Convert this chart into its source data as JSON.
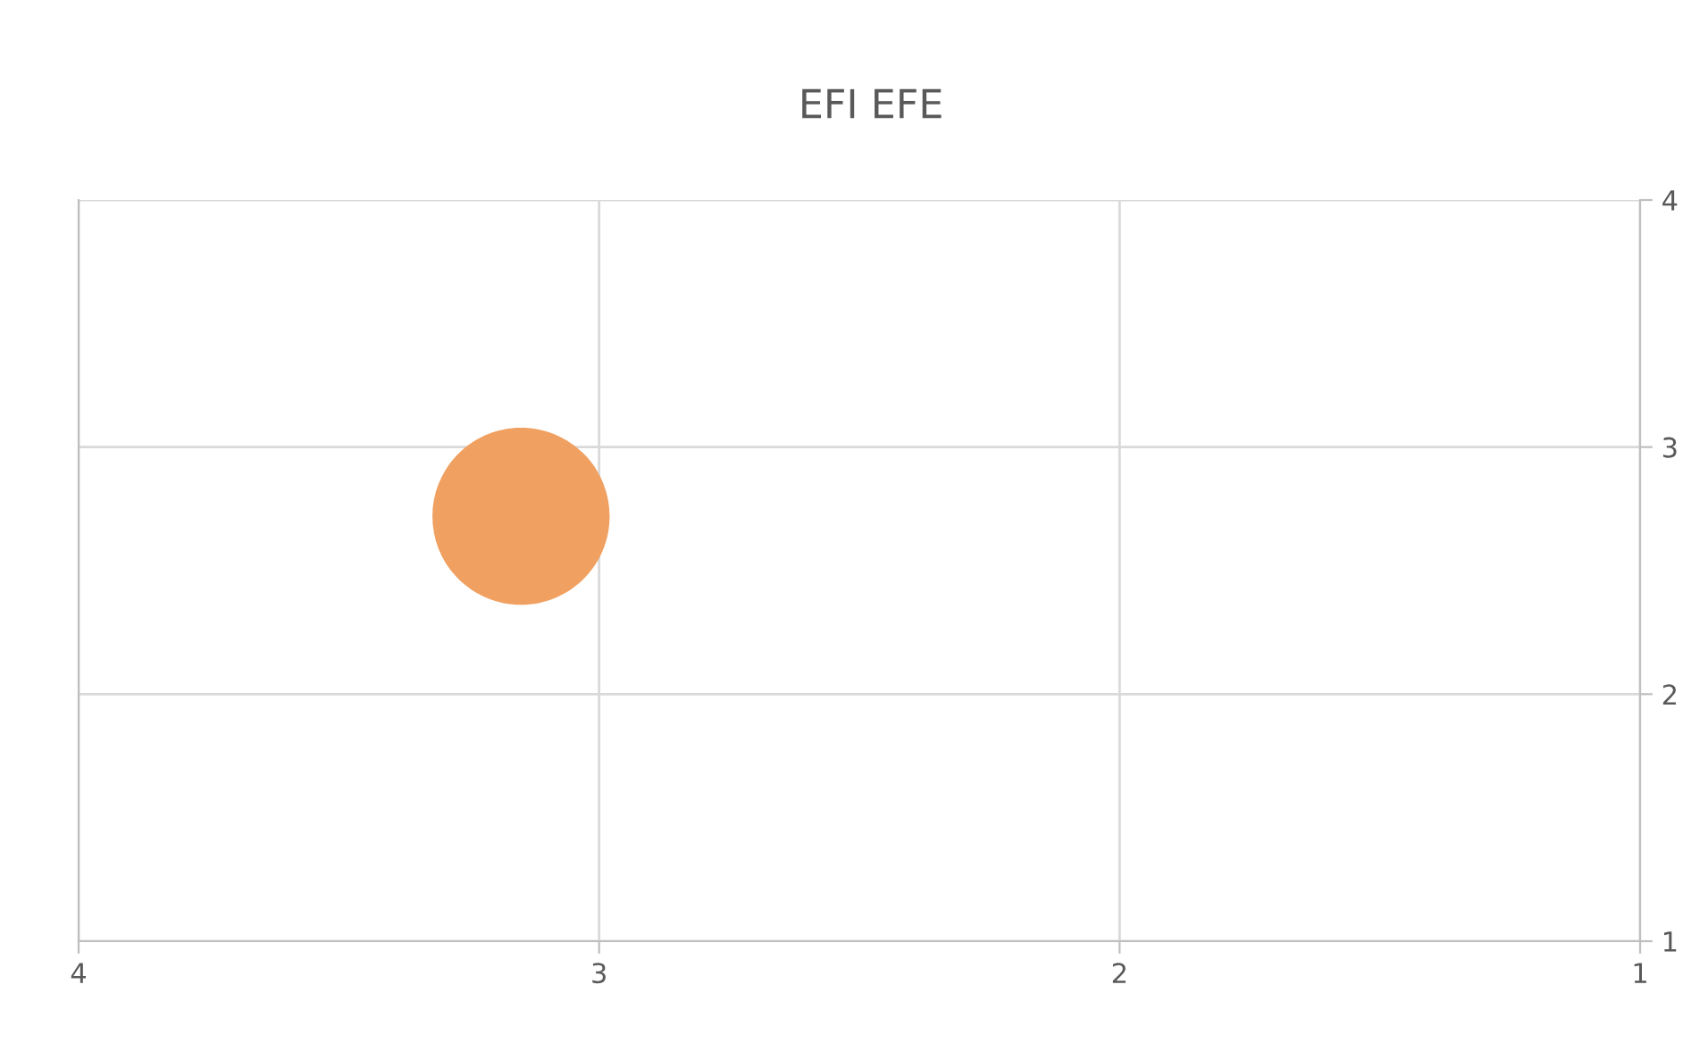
{
  "chart_data": {
    "type": "bubble",
    "title": "EFI EFE",
    "x": [
      3.15
    ],
    "values": [
      2.72
    ],
    "sizes": [
      1
    ],
    "color": "#f0a060",
    "xlim": [
      4,
      1
    ],
    "xticks": [
      4,
      3,
      2,
      1
    ],
    "ylim": [
      1,
      4
    ],
    "yticks": [
      1,
      2,
      3,
      4
    ],
    "grid": true,
    "legend": false
  }
}
